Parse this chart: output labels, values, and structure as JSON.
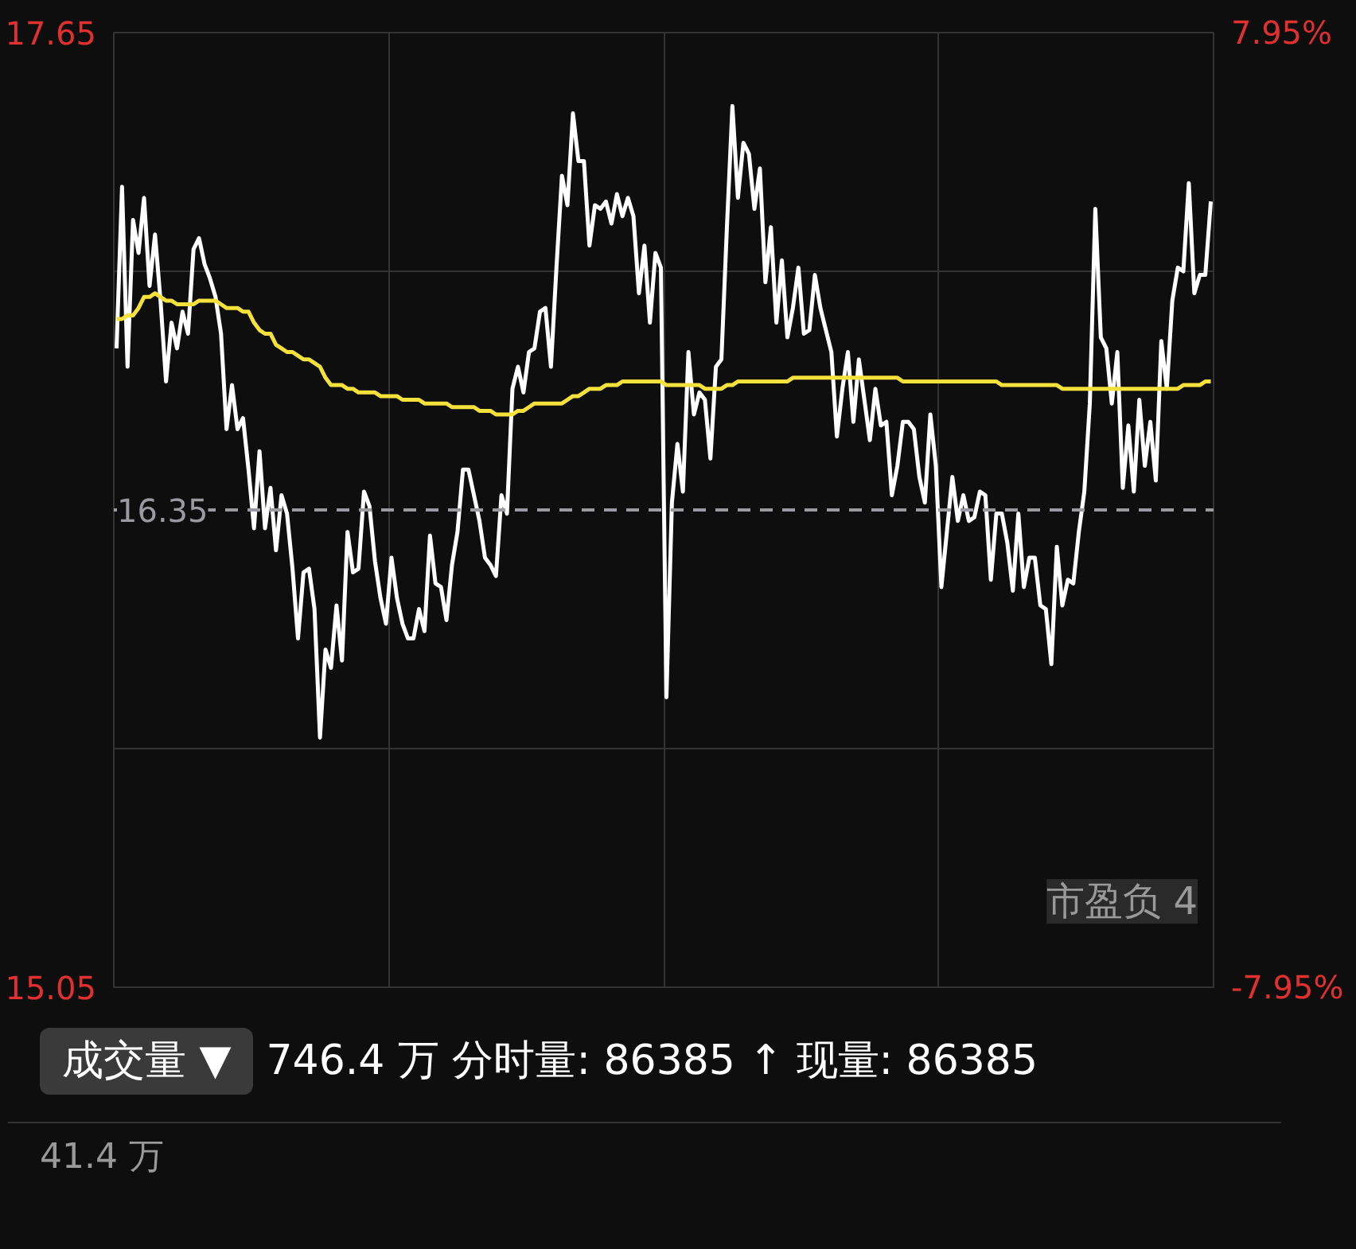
{
  "chart_data": {
    "type": "line",
    "categories": [
      null,
      null,
      null,
      null,
      null,
      null,
      null,
      null,
      null,
      null,
      null,
      null,
      null,
      null,
      null,
      null,
      null,
      null,
      null,
      null,
      null,
      null,
      null,
      null,
      null,
      null,
      null,
      null,
      null,
      null,
      null,
      null,
      null,
      null,
      null,
      null,
      null,
      null,
      null,
      null,
      null,
      null,
      null,
      null,
      null,
      null,
      null,
      null,
      null,
      null,
      null,
      null,
      null,
      null,
      null,
      null,
      null,
      null,
      null,
      null,
      null,
      null,
      null,
      null,
      null,
      null,
      null,
      null,
      null,
      null,
      null,
      null,
      null,
      null,
      null,
      null,
      null,
      null,
      null,
      null,
      null,
      null,
      null,
      null,
      null,
      null,
      null,
      null,
      null,
      null,
      null,
      null,
      null,
      null,
      null,
      null,
      null,
      null,
      null,
      null,
      null,
      null,
      null,
      null,
      null,
      null,
      null,
      null,
      null,
      null,
      null,
      null,
      null,
      null,
      null,
      null,
      null,
      null,
      null,
      null,
      null,
      null,
      null,
      null,
      null,
      null,
      null,
      null,
      null,
      null,
      null,
      null,
      null,
      null,
      null,
      null,
      null,
      null,
      null,
      null,
      null,
      null,
      null,
      null,
      null,
      null,
      null,
      null,
      null,
      null,
      null,
      null,
      null,
      null,
      null,
      null,
      null,
      null,
      null,
      null,
      null,
      null,
      null,
      null,
      null,
      null,
      null,
      null,
      null,
      null,
      null,
      null,
      null,
      null,
      null,
      null,
      null,
      null,
      null,
      null,
      null,
      null,
      null,
      null,
      null,
      null,
      null,
      null,
      null,
      null,
      null,
      null,
      null,
      null,
      null,
      null,
      null,
      null,
      null,
      null
    ],
    "ylim": [
      15.05,
      17.65
    ],
    "yticks": [
      15.05,
      17.65
    ],
    "y2lim": [
      -7.95,
      7.95
    ],
    "y2ticks": [
      {
        "value": -7.95,
        "label": "-7.95%"
      },
      {
        "value": 7.95,
        "label": "7.95%"
      }
    ],
    "grid": true,
    "marker": "none",
    "line_style": "solid",
    "ref_lines": [
      {
        "axis": "y",
        "value": 16.35,
        "label": "16.35",
        "color": "#9a9aa0",
        "line_style": "dashed"
      }
    ],
    "series": [
      {
        "color": "#ffffff",
        "values": [
          16.79,
          17.23,
          16.74,
          17.14,
          17.05,
          17.2,
          16.96,
          17.1,
          16.92,
          16.7,
          16.86,
          16.79,
          16.89,
          16.83,
          17.06,
          17.09,
          17.02,
          16.98,
          16.93,
          16.83,
          16.57,
          16.69,
          16.57,
          16.6,
          16.46,
          16.3,
          16.51,
          16.3,
          16.41,
          16.24,
          16.39,
          16.34,
          16.19,
          16.0,
          16.18,
          16.19,
          16.08,
          15.73,
          15.97,
          15.92,
          16.09,
          15.94,
          16.29,
          16.18,
          16.19,
          16.4,
          16.36,
          16.21,
          16.11,
          16.04,
          16.22,
          16.11,
          16.04,
          16.0,
          16.0,
          16.08,
          16.02,
          16.28,
          16.15,
          16.14,
          16.05,
          16.2,
          16.29,
          16.46,
          16.46,
          16.39,
          16.32,
          16.22,
          16.2,
          16.17,
          16.39,
          16.34,
          16.68,
          16.74,
          16.67,
          16.78,
          16.79,
          16.89,
          16.9,
          16.74,
          17.01,
          17.26,
          17.18,
          17.43,
          17.3,
          17.3,
          17.07,
          17.18,
          17.17,
          17.19,
          17.13,
          17.21,
          17.15,
          17.2,
          17.15,
          16.94,
          17.07,
          16.86,
          17.05,
          17.01,
          15.84,
          16.37,
          16.53,
          16.4,
          16.78,
          16.61,
          16.67,
          16.65,
          16.49,
          16.74,
          16.76,
          17.12,
          17.45,
          17.2,
          17.35,
          17.32,
          17.17,
          17.28,
          16.97,
          17.12,
          16.86,
          17.03,
          16.82,
          16.9,
          17.01,
          16.83,
          16.84,
          16.99,
          16.9,
          16.84,
          16.78,
          16.55,
          16.68,
          16.78,
          16.59,
          16.76,
          16.65,
          16.54,
          16.68,
          16.58,
          16.59,
          16.39,
          16.47,
          16.59,
          16.59,
          16.57,
          16.44,
          16.37,
          16.61,
          16.47,
          16.14,
          16.29,
          16.44,
          16.32,
          16.39,
          16.32,
          16.33,
          16.4,
          16.39,
          16.16,
          16.34,
          16.34,
          16.26,
          16.13,
          16.34,
          16.14,
          16.22,
          16.22,
          16.09,
          16.08,
          15.93,
          16.25,
          16.09,
          16.16,
          16.15,
          16.29,
          16.4,
          16.64,
          17.17,
          16.82,
          16.79,
          16.64,
          16.78,
          16.41,
          16.58,
          16.4,
          16.65,
          16.47,
          16.59,
          16.43,
          16.81,
          16.68,
          16.92,
          17.01,
          17.0,
          17.24,
          16.94,
          16.99,
          16.99,
          17.19
        ]
      },
      {
        "color": "#f5e13c",
        "values": [
          16.87,
          16.87,
          16.88,
          16.88,
          16.9,
          16.93,
          16.93,
          16.94,
          16.93,
          16.92,
          16.92,
          16.91,
          16.91,
          16.91,
          16.91,
          16.92,
          16.92,
          16.92,
          16.92,
          16.91,
          16.9,
          16.9,
          16.9,
          16.89,
          16.89,
          16.86,
          16.84,
          16.83,
          16.83,
          16.8,
          16.79,
          16.78,
          16.78,
          16.77,
          16.76,
          16.76,
          16.75,
          16.74,
          16.71,
          16.69,
          16.69,
          16.69,
          16.68,
          16.68,
          16.67,
          16.67,
          16.67,
          16.67,
          16.66,
          16.66,
          16.66,
          16.66,
          16.65,
          16.65,
          16.65,
          16.65,
          16.64,
          16.64,
          16.64,
          16.64,
          16.64,
          16.63,
          16.63,
          16.63,
          16.63,
          16.63,
          16.62,
          16.62,
          16.62,
          16.61,
          16.61,
          16.61,
          16.61,
          16.62,
          16.62,
          16.63,
          16.64,
          16.64,
          16.64,
          16.64,
          16.64,
          16.64,
          16.65,
          16.66,
          16.66,
          16.67,
          16.68,
          16.68,
          16.68,
          16.69,
          16.69,
          16.69,
          16.7,
          16.7,
          16.7,
          16.7,
          16.7,
          16.7,
          16.7,
          16.7,
          16.69,
          16.69,
          16.69,
          16.69,
          16.69,
          16.69,
          16.69,
          16.68,
          16.68,
          16.68,
          16.68,
          16.69,
          16.69,
          16.7,
          16.7,
          16.7,
          16.7,
          16.7,
          16.7,
          16.7,
          16.7,
          16.7,
          16.7,
          16.71,
          16.71,
          16.71,
          16.71,
          16.71,
          16.71,
          16.71,
          16.71,
          16.71,
          16.71,
          16.71,
          16.71,
          16.71,
          16.71,
          16.71,
          16.71,
          16.71,
          16.71,
          16.71,
          16.71,
          16.7,
          16.7,
          16.7,
          16.7,
          16.7,
          16.7,
          16.7,
          16.7,
          16.7,
          16.7,
          16.7,
          16.7,
          16.7,
          16.7,
          16.7,
          16.7,
          16.7,
          16.7,
          16.69,
          16.69,
          16.69,
          16.69,
          16.69,
          16.69,
          16.69,
          16.69,
          16.69,
          16.69,
          16.69,
          16.68,
          16.68,
          16.68,
          16.68,
          16.68,
          16.68,
          16.68,
          16.68,
          16.68,
          16.68,
          16.68,
          16.68,
          16.68,
          16.68,
          16.68,
          16.68,
          16.68,
          16.68,
          16.68,
          16.68,
          16.68,
          16.68,
          16.69,
          16.69,
          16.69,
          16.69,
          16.7,
          16.7
        ]
      }
    ],
    "annotations": [
      "市盈负 4",
      "成交量 ▼",
      "746.4 万 分时量: 86385 ↑ 现量: 86385",
      "41.4 万"
    ]
  }
}
